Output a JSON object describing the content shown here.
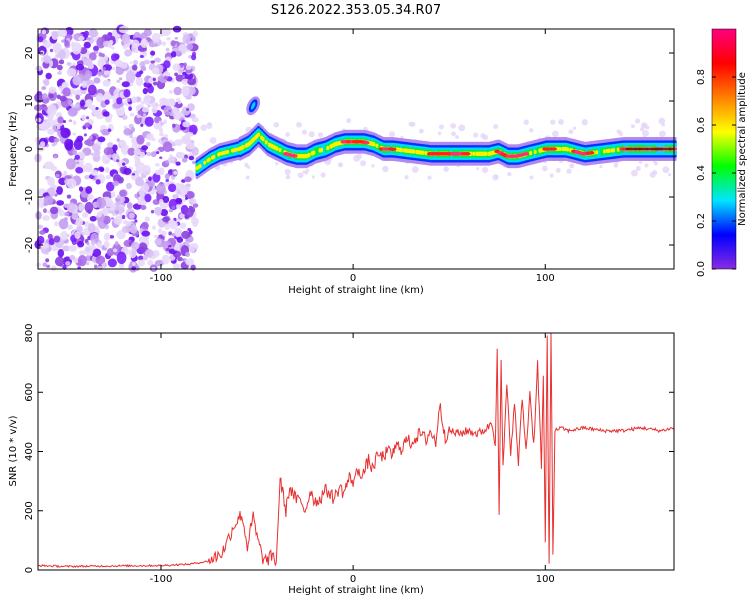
{
  "title": "S126.2022.353.05.34.R07",
  "chart_data": [
    {
      "type": "heatmap",
      "xlabel": "Height of straight line (km)",
      "ylabel": "Frequency (Hz)",
      "xlim": [
        -164,
        167
      ],
      "ylim": [
        -25,
        25
      ],
      "xticks": [
        -100,
        0,
        100
      ],
      "yticks": [
        -20,
        -10,
        0,
        10,
        20
      ],
      "colorbar": {
        "label": "Normalized spectral amplitude",
        "range": [
          0,
          1
        ],
        "ticks": [
          "0.0",
          "0.2",
          "0.4",
          "0.6",
          "0.8"
        ],
        "colors": [
          "#8a2be2",
          "#0000ff",
          "#00e5ff",
          "#00ff00",
          "#ffff00",
          "#ff8000",
          "#ff0000",
          "#ff0080"
        ]
      },
      "ridge": {
        "x": [
          -82,
          -75,
          -70,
          -65,
          -60,
          -55,
          -50,
          -45,
          -40,
          -35,
          -30,
          -25,
          -20,
          -15,
          -10,
          -5,
          0,
          5,
          10,
          15,
          20,
          30,
          40,
          50,
          60,
          70,
          75,
          80,
          85,
          90,
          95,
          100,
          110,
          120,
          130,
          140,
          150,
          167
        ],
        "y": [
          -4,
          -2,
          -1,
          -0.5,
          0,
          1,
          3,
          1,
          0,
          -1,
          -1.5,
          -1.5,
          -0.5,
          0,
          1,
          1.5,
          1.5,
          1.5,
          1,
          0,
          0,
          -0.5,
          -1,
          -1,
          -1,
          -1,
          -0.5,
          -1.5,
          -1.5,
          -1,
          -0.5,
          0,
          0,
          -1,
          -0.5,
          0,
          0,
          0
        ]
      },
      "blob": {
        "x": -52,
        "y": 9,
        "label": ""
      }
    },
    {
      "type": "line",
      "xlabel": "Height of straight line (km)",
      "ylabel": "SNR (10 * v/v)",
      "xlim": [
        -164,
        167
      ],
      "ylim": [
        0,
        800
      ],
      "xticks": [
        -100,
        0,
        100
      ],
      "yticks": [
        0,
        200,
        400,
        600,
        800
      ],
      "color": "#e83030",
      "series": [
        {
          "x": [
            -164,
            -150,
            -120,
            -100,
            -85,
            -75,
            -68,
            -62,
            -58,
            -55,
            -52,
            -50,
            -47,
            -45,
            -42,
            -40,
            -38,
            -35,
            -33,
            -30,
            -27,
            -25,
            -22,
            -20,
            -17,
            -15,
            -12,
            -10,
            -7,
            -5,
            -2,
            0,
            3,
            5,
            8,
            10,
            13,
            15,
            18,
            20,
            23,
            25,
            28,
            30,
            33,
            35,
            38,
            40,
            43,
            45,
            48,
            50,
            55,
            60,
            65,
            70,
            72,
            74,
            75,
            76,
            77,
            78,
            80,
            82,
            84,
            86,
            88,
            90,
            92,
            94,
            96,
            98,
            99,
            100,
            101,
            102,
            103,
            104,
            105,
            108,
            112,
            120,
            130,
            140,
            150,
            160,
            167
          ],
          "y": [
            15,
            12,
            14,
            15,
            20,
            30,
            60,
            150,
            190,
            80,
            180,
            110,
            40,
            30,
            50,
            25,
            310,
            200,
            280,
            240,
            230,
            200,
            270,
            230,
            240,
            270,
            260,
            240,
            280,
            260,
            310,
            300,
            340,
            320,
            370,
            340,
            390,
            380,
            400,
            390,
            420,
            410,
            440,
            430,
            450,
            460,
            440,
            470,
            430,
            560,
            450,
            470,
            460,
            470,
            460,
            480,
            500,
            430,
            760,
            180,
            700,
            350,
            620,
            400,
            560,
            360,
            580,
            400,
            600,
            420,
            700,
            350,
            650,
            100,
            780,
            20,
            830,
            50,
            470,
            480,
            470,
            480,
            470,
            470,
            480,
            470,
            480
          ]
        }
      ]
    }
  ]
}
